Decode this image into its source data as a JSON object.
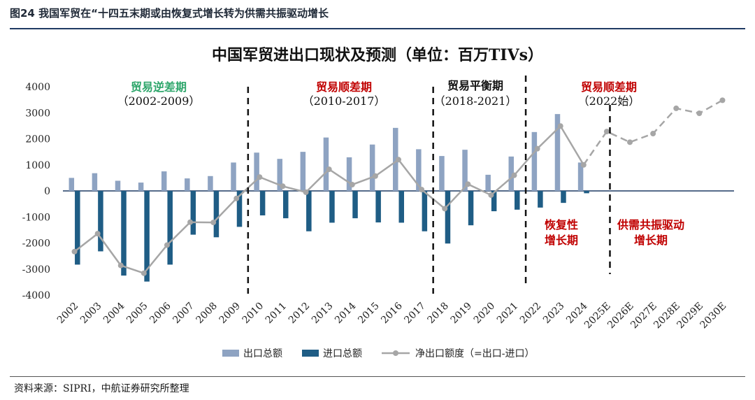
{
  "figure_label": "图24 我国军贸在“十四五末期或由恢复式增长转为供需共振驱动增长",
  "source": "资料来源：SIPRI，中航证券研究所整理",
  "colors": {
    "export": "#8ea3c2",
    "import": "#1f5d85",
    "net": "#a6a6a6",
    "green": "#2ea66b",
    "red": "#c00000",
    "rule": "#1f3b63"
  },
  "chart_data": {
    "type": "bar",
    "title": "中国军贸进出口现状及预测（单位：百万TIVs）",
    "categories": [
      "2002",
      "2003",
      "2004",
      "2005",
      "2006",
      "2007",
      "2008",
      "2009",
      "2010",
      "2011",
      "2012",
      "2013",
      "2014",
      "2015",
      "2016",
      "2017",
      "2018",
      "2019",
      "2020",
      "2021",
      "2022",
      "2023",
      "2024",
      "2025E",
      "2026E",
      "2027E",
      "2028E",
      "2029E",
      "2030E"
    ],
    "ylim": [
      -4000,
      4000
    ],
    "yticks": [
      -4000,
      -3000,
      -2000,
      -1000,
      0,
      1000,
      2000,
      3000,
      4000
    ],
    "series": [
      {
        "name": "出口总额",
        "kind": "bar",
        "values": [
          500,
          680,
          390,
          320,
          750,
          480,
          570,
          1090,
          1470,
          1230,
          1500,
          2050,
          1290,
          1780,
          2420,
          1600,
          1340,
          1580,
          620,
          1320,
          2260,
          2950,
          1090,
          null,
          null,
          null,
          null,
          null,
          null
        ]
      },
      {
        "name": "进口总额",
        "kind": "bar",
        "values": [
          -2830,
          -2320,
          -3250,
          -3480,
          -2830,
          -1680,
          -1780,
          -1380,
          -940,
          -1050,
          -1550,
          -1220,
          -1050,
          -1210,
          -1220,
          -1550,
          -2020,
          -1320,
          -780,
          -720,
          -640,
          -460,
          -90,
          null,
          null,
          null,
          null,
          null,
          null
        ]
      },
      {
        "name": "净出口额度（=出口-进口）",
        "kind": "line",
        "values": [
          -2330,
          -1640,
          -2860,
          -3160,
          -2080,
          -1200,
          -1210,
          -290,
          530,
          180,
          -50,
          830,
          240,
          570,
          1200,
          50,
          -680,
          260,
          -160,
          600,
          1620,
          2490,
          1000,
          2280,
          1870,
          2200,
          3170,
          2980,
          3480
        ]
      }
    ],
    "forecast_start_index": 22,
    "dividers_after": [
      "2009",
      "2017",
      "2021",
      "2025E"
    ],
    "periods": [
      {
        "label": "贸易逆差期",
        "years": "（2002-2009）",
        "color": "green"
      },
      {
        "label": "贸易顺差期",
        "years": "（2010-2017）",
        "color": "red"
      },
      {
        "label": "贸易平衡期",
        "years": "（2018-2021）",
        "color": "black"
      },
      {
        "label": "贸易顺差期",
        "years": "（2022始）",
        "color": "red"
      }
    ],
    "annotations": [
      {
        "lines": [
          "恢复性",
          "增长期"
        ]
      },
      {
        "lines": [
          "供需共振驱动",
          "增长期"
        ]
      }
    ],
    "legend": {
      "position": "bottom"
    }
  }
}
